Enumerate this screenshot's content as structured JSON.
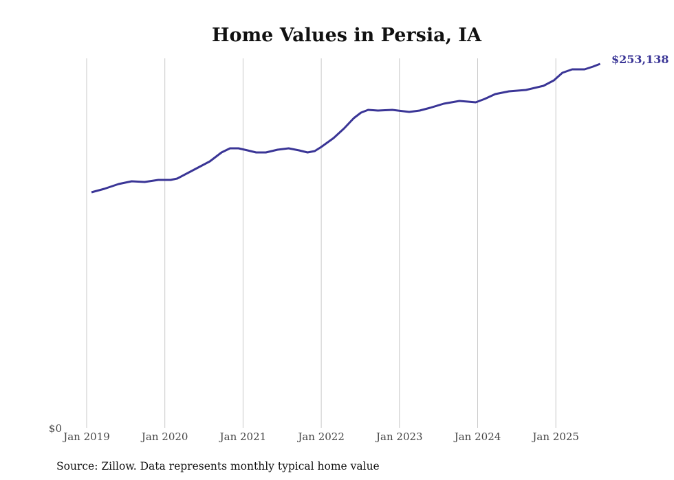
{
  "chart_data": {
    "type": "line",
    "title": "Home Values in Persia, IA",
    "xlabel": "",
    "ylabel": "",
    "x_units": "months since Jan 2019",
    "xlim": [
      0,
      80
    ],
    "ylim": [
      0,
      253138
    ],
    "y_tick_labels": [
      {
        "value": 0,
        "label": "$0"
      }
    ],
    "x_ticks": [
      {
        "value": 0,
        "label": "Jan 2019"
      },
      {
        "value": 12,
        "label": "Jan 2020"
      },
      {
        "value": 24,
        "label": "Jan 2021"
      },
      {
        "value": 36,
        "label": "Jan 2022"
      },
      {
        "value": 48,
        "label": "Jan 2023"
      },
      {
        "value": 60,
        "label": "Jan 2024"
      },
      {
        "value": 72,
        "label": "Jan 2025"
      }
    ],
    "grid": "vertical",
    "series": [
      {
        "name": "Typical home value",
        "color": "#3a3596",
        "end_label": "$253,138",
        "x": [
          0.74,
          2.7,
          4.9,
          6.9,
          8.9,
          11,
          12.9,
          13.9,
          15.7,
          18.9,
          20.7,
          22,
          23.3,
          24.7,
          26,
          27.5,
          29.3,
          31,
          32.6,
          33.9,
          35,
          36,
          37.9,
          39.5,
          41,
          42.1,
          43.2,
          44.7,
          46.9,
          49.5,
          51.1,
          52.7,
          54.8,
          57.2,
          58.5,
          59.7,
          61.1,
          62.7,
          64.8,
          67.4,
          70.1,
          71.7,
          73,
          74.5,
          76.4,
          77.7,
          78.8
        ],
        "values": [
          163800,
          166200,
          169550,
          171460,
          170980,
          172410,
          172410,
          173370,
          177670,
          185310,
          191520,
          194380,
          194380,
          192950,
          191520,
          191520,
          193430,
          194380,
          192950,
          191520,
          192470,
          195340,
          201550,
          208230,
          215400,
          219220,
          221130,
          220650,
          221130,
          219700,
          220650,
          222560,
          225430,
          227340,
          226860,
          226380,
          228770,
          232110,
          234020,
          234980,
          237840,
          241670,
          246920,
          249310,
          249310,
          251220,
          253138
        ]
      }
    ],
    "source": "Source: Zillow. Data represents monthly typical home value"
  }
}
